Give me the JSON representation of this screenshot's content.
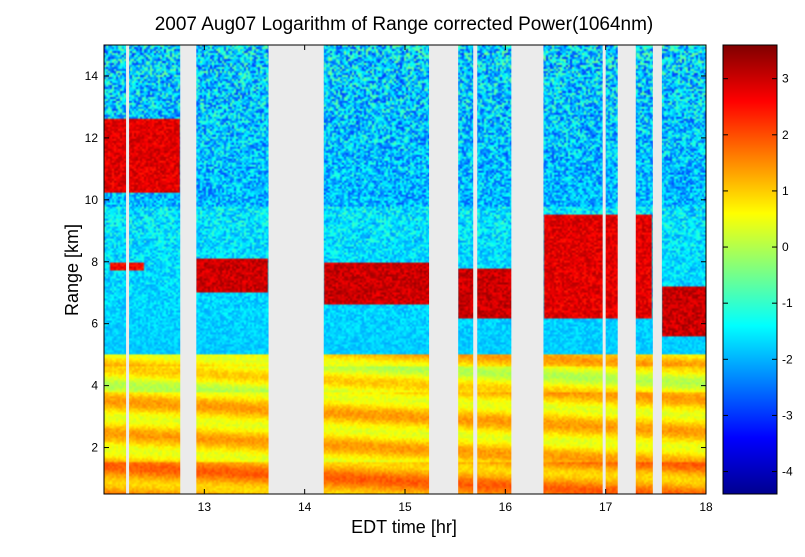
{
  "chart_data": {
    "type": "heatmap",
    "title": "2007 Aug07  Logarithm of Range corrected Power(1064nm)",
    "xlabel": "EDT time [hr]",
    "ylabel": "Range [km]",
    "xlim": [
      12.0,
      18.0
    ],
    "ylim": [
      0.5,
      15.0
    ],
    "x_ticks": [
      "13",
      "14",
      "15",
      "16",
      "17",
      "18"
    ],
    "y_ticks": [
      "2",
      "4",
      "6",
      "8",
      "10",
      "12",
      "14"
    ],
    "colorbar": {
      "colormap": "jet",
      "clim": [
        -4.4,
        3.6
      ],
      "ticks": [
        "3",
        "2",
        "1",
        "0",
        "-1",
        "-2",
        "-3",
        "-4"
      ]
    },
    "no_data_intervals_hr": [
      [
        12.22,
        12.25
      ],
      [
        12.76,
        12.92
      ],
      [
        13.64,
        14.19
      ],
      [
        15.24,
        15.53
      ],
      [
        15.68,
        15.72
      ],
      [
        16.06,
        16.38
      ],
      [
        16.97,
        17.0
      ],
      [
        17.12,
        17.3
      ],
      [
        17.47,
        17.56
      ]
    ],
    "features": {
      "boundary_layer": {
        "range_km": [
          0.5,
          5.0
        ],
        "log_power": 1.0
      },
      "dense_layers": [
        {
          "t": [
            12.0,
            12.75
          ],
          "range_km": [
            10.2,
            12.6
          ],
          "log_power": 3.2
        },
        {
          "t": [
            12.05,
            12.4
          ],
          "range_km": [
            7.7,
            7.95
          ],
          "log_power": 3.0
        },
        {
          "t": [
            12.92,
            13.63
          ],
          "range_km": [
            7.0,
            8.1
          ],
          "log_power": 3.4
        },
        {
          "t": [
            14.19,
            15.24
          ],
          "range_km": [
            6.6,
            8.0
          ],
          "log_power": 3.4
        },
        {
          "t": [
            15.53,
            16.06
          ],
          "range_km": [
            6.2,
            7.8
          ],
          "log_power": 3.4
        },
        {
          "t": [
            16.38,
            17.47
          ],
          "range_km": [
            6.2,
            9.5
          ],
          "log_power": 3.2
        },
        {
          "t": [
            17.56,
            18.0
          ],
          "range_km": [
            5.6,
            7.2
          ],
          "log_power": 3.4
        }
      ]
    }
  }
}
